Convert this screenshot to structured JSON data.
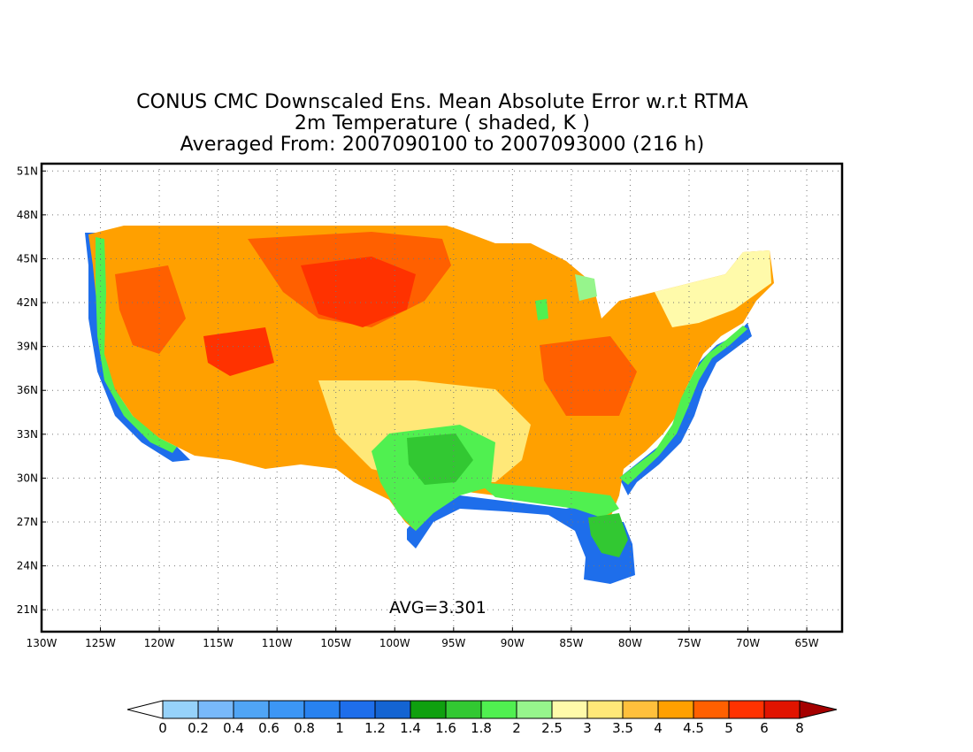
{
  "title": {
    "line1": "CONUS CMC Downscaled Ens. Mean Absolute Error w.r.t RTMA",
    "line2": "2m Temperature ( shaded, K )",
    "line3": "Averaged From: 2007090100 to 2007093000 (216 h)"
  },
  "map": {
    "lon_range": [
      -130,
      -62
    ],
    "lat_range": [
      19.5,
      51.5
    ],
    "lat_ticks": [
      "51N",
      "48N",
      "45N",
      "42N",
      "39N",
      "36N",
      "33N",
      "30N",
      "27N",
      "24N",
      "21N"
    ],
    "lon_ticks": [
      "130W",
      "125W",
      "120W",
      "115W",
      "110W",
      "105W",
      "100W",
      "95W",
      "90W",
      "85W",
      "80W",
      "75W",
      "70W",
      "65W"
    ],
    "grid": true,
    "avg_label": "AVG=3.301"
  },
  "colorbar": {
    "labels": [
      "0",
      "0.2",
      "0.4",
      "0.6",
      "0.8",
      "1",
      "1.2",
      "1.4",
      "1.6",
      "1.8",
      "2",
      "2.5",
      "3",
      "3.5",
      "4",
      "4.5",
      "5",
      "6",
      "8"
    ],
    "colors": [
      "#96d2fa",
      "#78b9fa",
      "#50a5f5",
      "#3c96f5",
      "#2882f0",
      "#1e6eeb",
      "#1464d2",
      "#0fa00f",
      "#32c832",
      "#50f050",
      "#96f58c",
      "#fffaaa",
      "#ffe878",
      "#ffc03c",
      "#ffa000",
      "#ff6000",
      "#ff3200",
      "#e11400",
      "#c00000"
    ],
    "under_color": "#ffffff",
    "over_color": "#a50000"
  }
}
